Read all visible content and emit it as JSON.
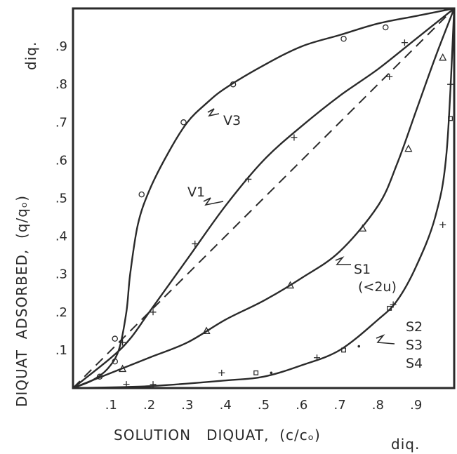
{
  "chart_data": {
    "type": "line",
    "xlabel": "SOLUTION   DIQUAT,  (c/cₒ)",
    "xlabel_sub": "diq.",
    "ylabel": "DIQUAT  ADSORBED,  (q/qₒ)",
    "ylabel_sub": "diq.",
    "xlim": [
      0,
      1
    ],
    "ylim": [
      0,
      1
    ],
    "x_ticks": [
      0.1,
      0.2,
      0.3,
      0.4,
      0.5,
      0.6,
      0.7,
      0.8,
      0.9
    ],
    "x_tick_labels": [
      ".1",
      ".2",
      ".3",
      ".4",
      ".5",
      ".6",
      ".7",
      ".8",
      ".9"
    ],
    "y_ticks": [
      0.1,
      0.2,
      0.3,
      0.4,
      0.5,
      0.6,
      0.7,
      0.8,
      0.9
    ],
    "y_tick_labels": [
      ".1",
      ".2",
      ".3",
      ".4",
      ".5",
      ".6",
      ".7",
      ".8",
      ".9"
    ],
    "grid": false,
    "diagonal_reference": [
      [
        0,
        0
      ],
      [
        1,
        1
      ]
    ],
    "series": [
      {
        "name": "V3",
        "marker": "circle",
        "curve": [
          [
            0,
            0
          ],
          [
            0.05,
            0.02
          ],
          [
            0.09,
            0.05
          ],
          [
            0.12,
            0.1
          ],
          [
            0.14,
            0.2
          ],
          [
            0.15,
            0.3
          ],
          [
            0.17,
            0.43
          ],
          [
            0.2,
            0.52
          ],
          [
            0.25,
            0.62
          ],
          [
            0.3,
            0.7
          ],
          [
            0.35,
            0.75
          ],
          [
            0.4,
            0.79
          ],
          [
            0.5,
            0.85
          ],
          [
            0.6,
            0.9
          ],
          [
            0.7,
            0.93
          ],
          [
            0.8,
            0.96
          ],
          [
            0.9,
            0.98
          ],
          [
            1,
            1
          ]
        ],
        "points": [
          [
            0.07,
            0.03
          ],
          [
            0.11,
            0.07
          ],
          [
            0.11,
            0.13
          ],
          [
            0.18,
            0.51
          ],
          [
            0.29,
            0.7
          ],
          [
            0.42,
            0.8
          ],
          [
            0.71,
            0.92
          ],
          [
            0.82,
            0.95
          ]
        ]
      },
      {
        "name": "V1",
        "marker": "plus",
        "curve": [
          [
            0,
            0
          ],
          [
            0.1,
            0.08
          ],
          [
            0.15,
            0.13
          ],
          [
            0.2,
            0.2
          ],
          [
            0.3,
            0.34
          ],
          [
            0.4,
            0.48
          ],
          [
            0.5,
            0.6
          ],
          [
            0.6,
            0.69
          ],
          [
            0.7,
            0.77
          ],
          [
            0.8,
            0.84
          ],
          [
            0.9,
            0.92
          ],
          [
            1,
            1
          ]
        ],
        "points": [
          [
            0.13,
            0.12
          ],
          [
            0.21,
            0.2
          ],
          [
            0.32,
            0.38
          ],
          [
            0.46,
            0.55
          ],
          [
            0.58,
            0.66
          ],
          [
            0.83,
            0.82
          ],
          [
            0.87,
            0.91
          ]
        ]
      },
      {
        "name": "S1",
        "annotation": "(<2u)",
        "marker": "triangle",
        "curve": [
          [
            0,
            0
          ],
          [
            0.1,
            0.04
          ],
          [
            0.2,
            0.08
          ],
          [
            0.3,
            0.12
          ],
          [
            0.4,
            0.18
          ],
          [
            0.5,
            0.23
          ],
          [
            0.6,
            0.29
          ],
          [
            0.7,
            0.36
          ],
          [
            0.8,
            0.48
          ],
          [
            0.85,
            0.59
          ],
          [
            0.9,
            0.73
          ],
          [
            0.95,
            0.87
          ],
          [
            1,
            1
          ]
        ],
        "points": [
          [
            0.13,
            0.05
          ],
          [
            0.35,
            0.15
          ],
          [
            0.57,
            0.27
          ],
          [
            0.76,
            0.42
          ],
          [
            0.88,
            0.63
          ],
          [
            0.97,
            0.87
          ]
        ]
      },
      {
        "name": "S2",
        "marker": "plus",
        "curve": [
          [
            0,
            0
          ],
          [
            0.2,
            0.005
          ],
          [
            0.4,
            0.02
          ],
          [
            0.5,
            0.03
          ],
          [
            0.6,
            0.06
          ],
          [
            0.7,
            0.1
          ],
          [
            0.8,
            0.18
          ],
          [
            0.85,
            0.23
          ],
          [
            0.9,
            0.32
          ],
          [
            0.95,
            0.45
          ],
          [
            0.98,
            0.62
          ],
          [
            1,
            1
          ]
        ],
        "points": [
          [
            0.14,
            0.01
          ],
          [
            0.21,
            0.01
          ],
          [
            0.39,
            0.04
          ],
          [
            0.64,
            0.08
          ],
          [
            0.84,
            0.22
          ],
          [
            0.97,
            0.43
          ],
          [
            0.99,
            0.8
          ]
        ]
      },
      {
        "name": "S3",
        "marker": "dot",
        "points": [
          [
            0.52,
            0.04
          ],
          [
            0.75,
            0.11
          ]
        ]
      },
      {
        "name": "S4",
        "marker": "square",
        "points": [
          [
            0.48,
            0.04
          ],
          [
            0.71,
            0.1
          ],
          [
            0.83,
            0.21
          ],
          [
            0.99,
            0.71
          ]
        ]
      }
    ]
  }
}
